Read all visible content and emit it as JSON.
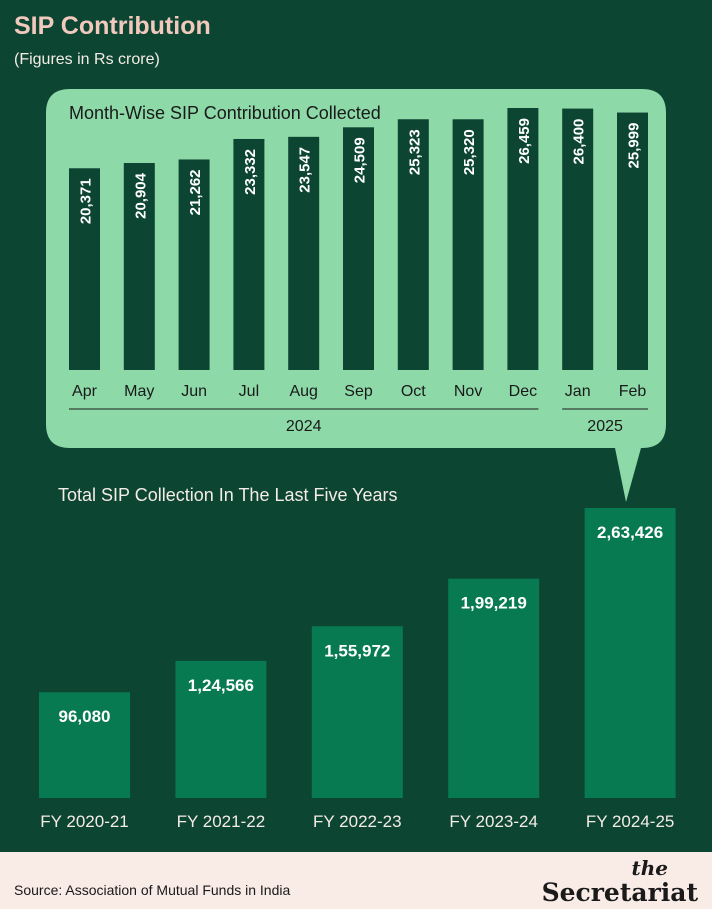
{
  "header": {
    "title": "SIP Contribution",
    "subtitle": "(Figures in Rs crore)"
  },
  "chart_data": [
    {
      "type": "bar",
      "title": "Month-Wise SIP Contribution Collected",
      "categories": [
        "Apr",
        "May",
        "Jun",
        "Jul",
        "Aug",
        "Sep",
        "Oct",
        "Nov",
        "Dec",
        "Jan",
        "Feb"
      ],
      "values": [
        20371,
        20904,
        21262,
        23332,
        23547,
        24509,
        25323,
        25320,
        26459,
        26400,
        25999
      ],
      "value_labels": [
        "20,371",
        "20,904",
        "21,262",
        "23,332",
        "23,547",
        "24,509",
        "25,323",
        "25,320",
        "26,459",
        "26,400",
        "25,999"
      ],
      "groups": [
        {
          "label": "2024",
          "from": 0,
          "to": 8
        },
        {
          "label": "2025",
          "from": 9,
          "to": 10
        }
      ],
      "ylim": [
        0,
        26459
      ],
      "grid": false,
      "colors": {
        "panel": "#8dd9a8",
        "bar": "#0d4533",
        "text": "#1a1a1a",
        "bar_label": "#ffffff"
      }
    },
    {
      "type": "bar",
      "title": "Total SIP Collection In The Last Five Years",
      "categories": [
        "FY 2020-21",
        "FY 2021-22",
        "FY 2022-23",
        "FY 2023-24",
        "FY 2024-25"
      ],
      "values": [
        96080,
        124566,
        155972,
        199219,
        263426
      ],
      "value_labels": [
        "96,080",
        "1,24,566",
        "1,55,972",
        "1,99,219",
        "2,63,426"
      ],
      "ylim": [
        0,
        263426
      ],
      "grid": false,
      "colors": {
        "bar": "#077a52",
        "text": "#f4ece6",
        "bar_label": "#ffffff"
      }
    }
  ],
  "footer": {
    "source": "Source: Association of Mutual Funds in India",
    "logo_top": "the",
    "logo_bottom": "Secretariat"
  }
}
